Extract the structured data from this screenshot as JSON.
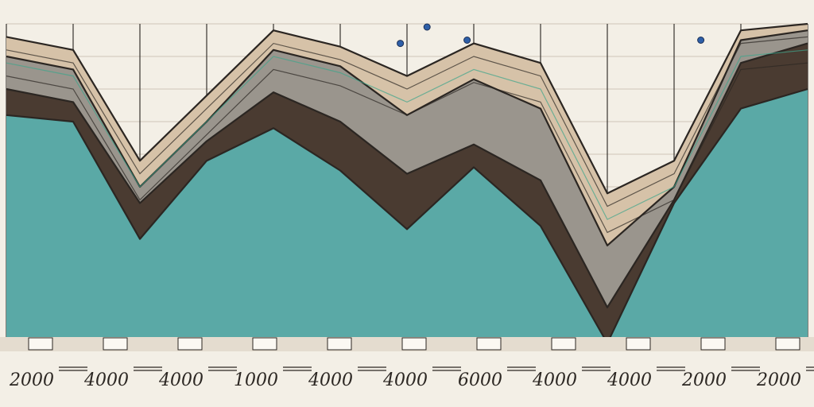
{
  "chart_data": {
    "type": "area",
    "title": "",
    "xlabel": "",
    "ylabel": "",
    "grid": true,
    "legend": "none",
    "x_tick_labels": [
      "2000",
      "4000",
      "4000",
      "1000",
      "4000",
      "4000",
      "6000",
      "4000",
      "4000",
      "2000",
      "2000"
    ],
    "x": [
      0,
      1,
      2,
      3,
      4,
      5,
      6,
      7,
      8,
      9,
      10,
      11,
      12
    ],
    "ylim": [
      0,
      100
    ],
    "series": [
      {
        "values": [
          72,
          70,
          34,
          58,
          68,
          55,
          37,
          56,
          38,
          2,
          45,
          74,
          80
        ],
        "color": "#5aa9a6"
      },
      {
        "values": [
          80,
          76,
          45,
          64,
          79,
          70,
          54,
          63,
          52,
          13,
          46,
          88,
          94
        ],
        "color": "#4a3b31"
      },
      {
        "values": [
          90,
          86,
          50,
          70,
          92,
          87,
          72,
          83,
          74,
          32,
          50,
          95,
          98
        ],
        "color": "#9a958d"
      },
      {
        "values": [
          96,
          92,
          58,
          78,
          98,
          93,
          84,
          94,
          88,
          48,
          58,
          98,
          100
        ],
        "color": "#d6c2a8"
      }
    ],
    "markers": [
      {
        "x": 5.9,
        "y": 94
      },
      {
        "x": 6.3,
        "y": 103
      },
      {
        "x": 6.9,
        "y": 95
      },
      {
        "x": 10.4,
        "y": 95
      }
    ],
    "colors": {
      "background": "#f3efe6",
      "grid": "#cfc6b8",
      "frame": "#2b2622",
      "marker": "#2e5fa8",
      "accent_line": "#3fa58c"
    }
  }
}
